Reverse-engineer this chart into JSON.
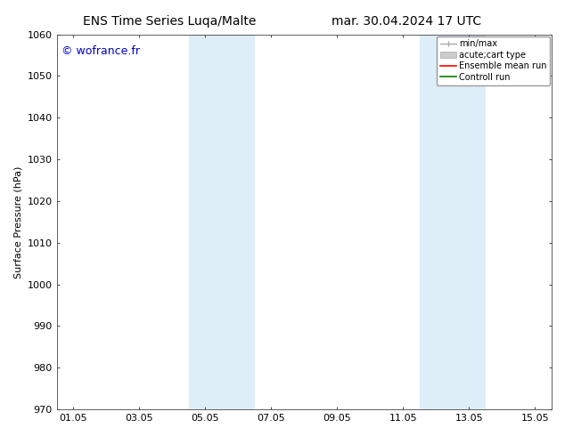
{
  "title_left": "ENS Time Series Luqa/Malte",
  "title_right": "mar. 30.04.2024 17 UTC",
  "ylabel": "Surface Pressure (hPa)",
  "xlabel": "",
  "ylim": [
    970,
    1060
  ],
  "yticks": [
    970,
    980,
    990,
    1000,
    1010,
    1020,
    1030,
    1040,
    1050,
    1060
  ],
  "xtick_labels": [
    "01.05",
    "03.05",
    "05.05",
    "07.05",
    "09.05",
    "11.05",
    "13.05",
    "15.05"
  ],
  "xtick_positions": [
    0,
    2,
    4,
    6,
    8,
    10,
    12,
    14
  ],
  "xlim": [
    -0.5,
    14.5
  ],
  "background_color": "#ffffff",
  "plot_bg_color": "#ffffff",
  "shaded_bands": [
    {
      "x_start": 3.5,
      "x_end": 4.5,
      "color": "#ddeef8"
    },
    {
      "x_start": 4.5,
      "x_end": 5.5,
      "color": "#ddeef8"
    },
    {
      "x_start": 10.5,
      "x_end": 11.5,
      "color": "#ddeef8"
    },
    {
      "x_start": 11.5,
      "x_end": 12.5,
      "color": "#ddeef8"
    }
  ],
  "watermark_text": "© wofrance.fr",
  "watermark_color": "#0000cc",
  "legend_entries": [
    {
      "label": "min/max",
      "color": "#aaaaaa",
      "type": "line_with_caps"
    },
    {
      "label": "acute;cart type",
      "color": "#cccccc",
      "type": "thick_bar"
    },
    {
      "label": "Ensemble mean run",
      "color": "#ff0000",
      "type": "line"
    },
    {
      "label": "Controll run",
      "color": "#008000",
      "type": "line"
    }
  ],
  "title_fontsize": 10,
  "axis_label_fontsize": 8,
  "tick_fontsize": 8,
  "watermark_fontsize": 9,
  "legend_fontsize": 7
}
